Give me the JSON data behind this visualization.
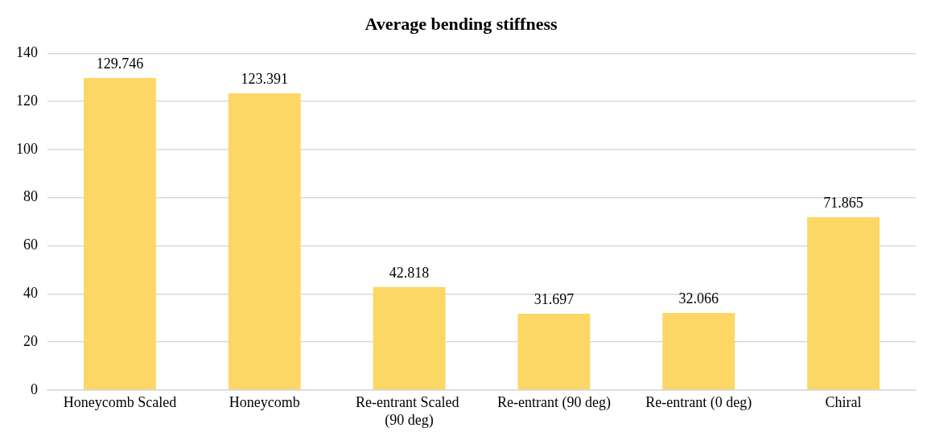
{
  "chart_data": {
    "type": "bar",
    "title": "Average bending stiffness",
    "categories": [
      "Honeycomb Scaled",
      "Honeycomb",
      "Re-entrant Scaled  (90 deg)",
      "Re-entrant (90 deg)",
      "Re-entrant (0 deg)",
      "Chiral"
    ],
    "values": [
      129.746,
      123.391,
      42.818,
      31.697,
      32.066,
      71.865
    ],
    "color": "#fdd766",
    "ylim": [
      0,
      140
    ],
    "yticks": [
      0,
      20,
      40,
      60,
      80,
      100,
      120,
      140
    ],
    "grid": "y",
    "data_labels": true,
    "legend": false
  }
}
